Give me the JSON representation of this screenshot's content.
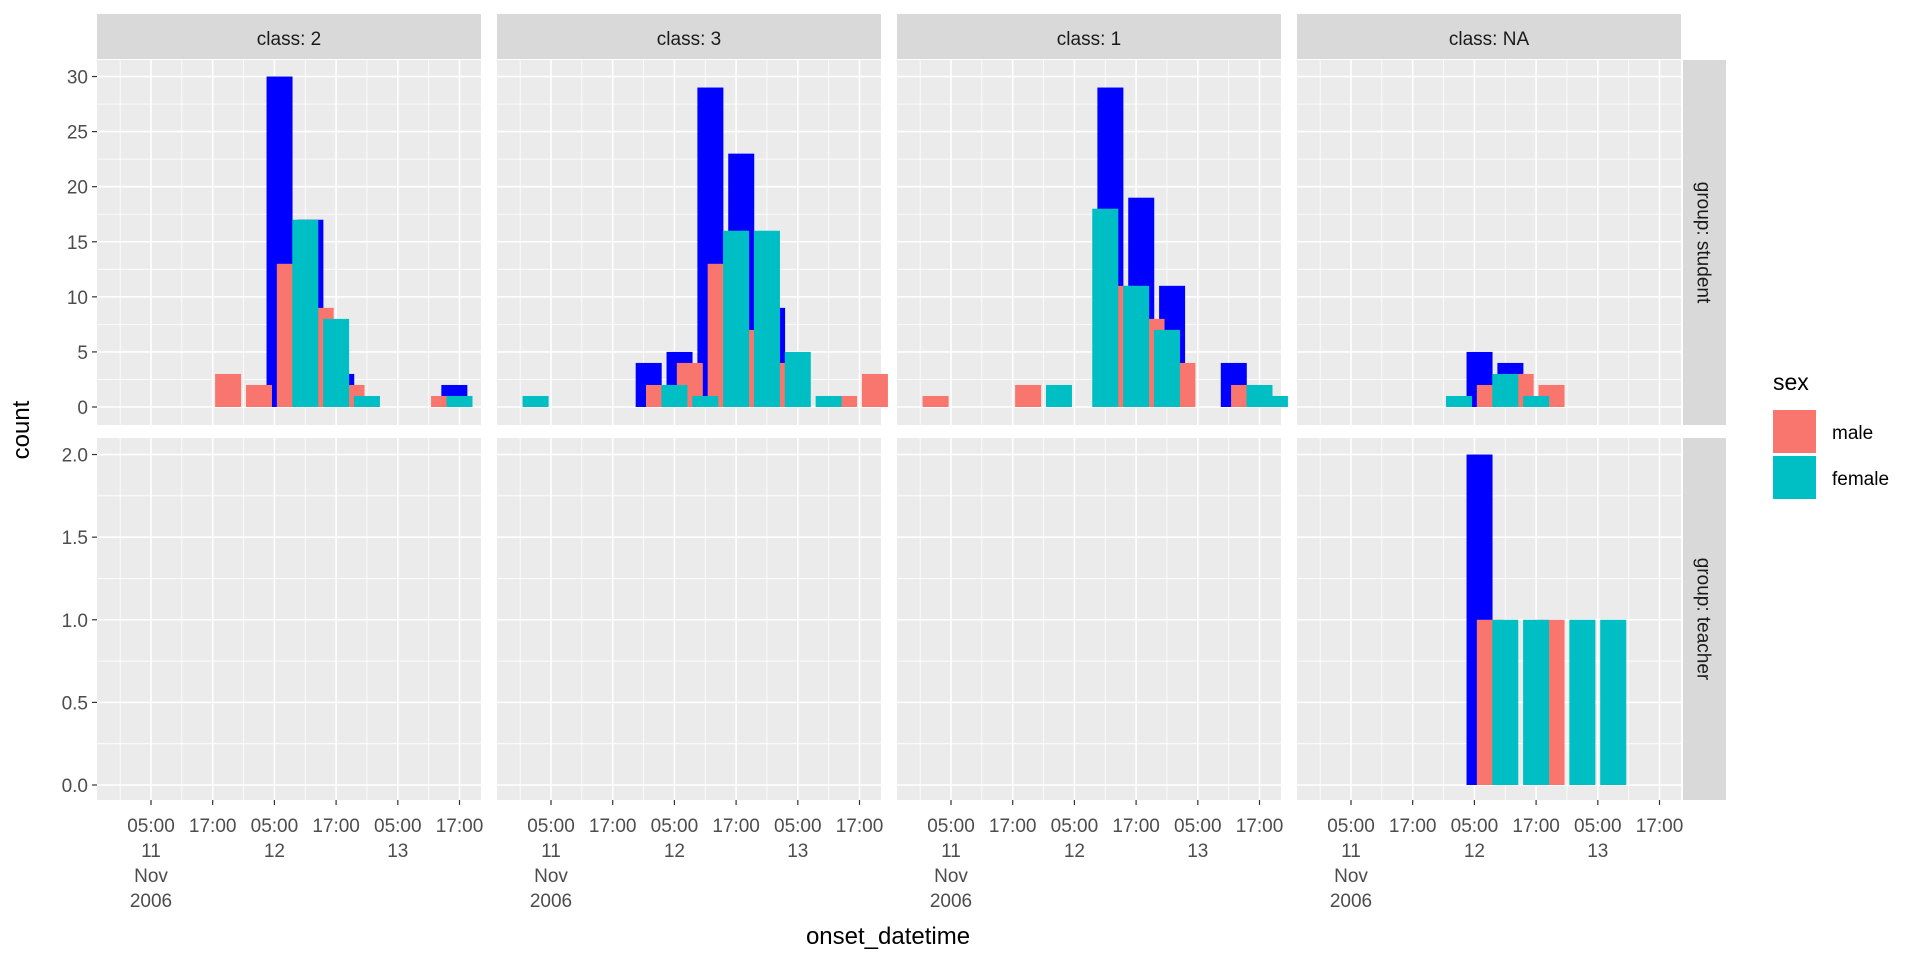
{
  "chart_data": {
    "type": "bar",
    "xlabel": "onset_datetime",
    "ylabel": "count",
    "facet_cols": [
      "class: 2",
      "class: 3",
      "class: 1",
      "class: NA"
    ],
    "facet_rows": [
      "group: student",
      "group: teacher"
    ],
    "x_ticks": [
      {
        "label": [
          "05:00",
          "11",
          "Nov",
          "2006"
        ]
      },
      {
        "label": [
          "17:00"
        ]
      },
      {
        "label": [
          "05:00",
          "12"
        ]
      },
      {
        "label": [
          "17:00"
        ]
      },
      {
        "label": [
          "05:00",
          "13"
        ]
      },
      {
        "label": [
          "17:00"
        ]
      }
    ],
    "x_tick_times": [
      "2006-11-11 05:00",
      "2006-11-11 17:00",
      "2006-11-12 05:00",
      "2006-11-12 17:00",
      "2006-11-13 05:00",
      "2006-11-13 17:00"
    ],
    "y_ticks": {
      "student": [
        "0",
        "5",
        "10",
        "15",
        "20",
        "25",
        "30"
      ],
      "teacher": [
        "0.0",
        "0.5",
        "1.0",
        "1.5",
        "2.0"
      ]
    },
    "ylim": {
      "student": [
        0,
        31.5
      ],
      "teacher": [
        0,
        2.1
      ]
    },
    "total_bar_color": "#0000ff",
    "legend": {
      "title": "sex",
      "position": "right",
      "entries": [
        {
          "label": "male",
          "color": "#f8766d"
        },
        {
          "label": "female",
          "color": "#00bfc4"
        }
      ]
    },
    "grid": true,
    "panel_background": "#ebebeb",
    "strip_background": "#d9d9d9",
    "total_series": {
      "note_free": true,
      "student": {
        "class: 2": [
          {
            "x": "2006-11-12 06:00",
            "total": 30
          },
          {
            "x": "2006-11-12 12:00",
            "total": 17
          },
          {
            "x": "2006-11-12 18:00",
            "total": 3
          },
          {
            "x": "2006-11-13 16:00",
            "total": 2
          }
        ],
        "class: 3": [
          {
            "x": "2006-11-12 00:00",
            "total": 4
          },
          {
            "x": "2006-11-12 06:00",
            "total": 5
          },
          {
            "x": "2006-11-12 12:00",
            "total": 29
          },
          {
            "x": "2006-11-12 18:00",
            "total": 23
          },
          {
            "x": "2006-11-13 00:00",
            "total": 9
          }
        ],
        "class: 1": [
          {
            "x": "2006-11-12 12:00",
            "total": 29
          },
          {
            "x": "2006-11-12 18:00",
            "total": 19
          },
          {
            "x": "2006-11-13 00:00",
            "total": 11
          },
          {
            "x": "2006-11-13 12:00",
            "total": 4
          }
        ],
        "class: NA": [
          {
            "x": "2006-11-12 06:00",
            "total": 5
          },
          {
            "x": "2006-11-12 12:00",
            "total": 4
          }
        ]
      },
      "teacher": {
        "class: NA": [
          {
            "x": "2006-11-12 06:00",
            "total": 2
          }
        ]
      }
    },
    "sex_series": {
      "student": {
        "class: 2": {
          "male": [
            {
              "x": "2006-11-11 20:00",
              "y": 3
            },
            {
              "x": "2006-11-12 02:00",
              "y": 2
            },
            {
              "x": "2006-11-12 08:00",
              "y": 13
            },
            {
              "x": "2006-11-12 14:00",
              "y": 9
            },
            {
              "x": "2006-11-12 20:00",
              "y": 2
            },
            {
              "x": "2006-11-13 14:00",
              "y": 1
            }
          ],
          "female": [
            {
              "x": "2006-11-12 11:00",
              "y": 17
            },
            {
              "x": "2006-11-12 17:00",
              "y": 8
            },
            {
              "x": "2006-11-12 23:00",
              "y": 1
            },
            {
              "x": "2006-11-13 17:00",
              "y": 1
            }
          ]
        },
        "class: 3": {
          "male": [
            {
              "x": "2006-11-12 02:00",
              "y": 2
            },
            {
              "x": "2006-11-12 08:00",
              "y": 4
            },
            {
              "x": "2006-11-12 14:00",
              "y": 13
            },
            {
              "x": "2006-11-12 20:00",
              "y": 7
            },
            {
              "x": "2006-11-13 02:00",
              "y": 4
            },
            {
              "x": "2006-11-13 14:00",
              "y": 1
            },
            {
              "x": "2006-11-13 20:00",
              "y": 3
            }
          ],
          "female": [
            {
              "x": "2006-11-11 02:00",
              "y": 1
            },
            {
              "x": "2006-11-12 05:00",
              "y": 2
            },
            {
              "x": "2006-11-12 11:00",
              "y": 1
            },
            {
              "x": "2006-11-12 17:00",
              "y": 16
            },
            {
              "x": "2006-11-12 23:00",
              "y": 16
            },
            {
              "x": "2006-11-13 05:00",
              "y": 5
            },
            {
              "x": "2006-11-13 11:00",
              "y": 1
            }
          ]
        },
        "class: 1": {
          "male": [
            {
              "x": "2006-11-11 02:00",
              "y": 1
            },
            {
              "x": "2006-11-11 20:00",
              "y": 2
            },
            {
              "x": "2006-11-12 14:00",
              "y": 11
            },
            {
              "x": "2006-11-12 20:00",
              "y": 8
            },
            {
              "x": "2006-11-13 02:00",
              "y": 4
            },
            {
              "x": "2006-11-13 14:00",
              "y": 2
            }
          ],
          "female": [
            {
              "x": "2006-11-12 02:00",
              "y": 2
            },
            {
              "x": "2006-11-12 11:00",
              "y": 18
            },
            {
              "x": "2006-11-12 17:00",
              "y": 11
            },
            {
              "x": "2006-11-12 23:00",
              "y": 7
            },
            {
              "x": "2006-11-13 17:00",
              "y": 2
            },
            {
              "x": "2006-11-13 20:00",
              "y": 1
            }
          ]
        },
        "class: NA": {
          "male": [
            {
              "x": "2006-11-12 08:00",
              "y": 2
            },
            {
              "x": "2006-11-12 14:00",
              "y": 3
            },
            {
              "x": "2006-11-12 20:00",
              "y": 2
            }
          ],
          "female": [
            {
              "x": "2006-11-12 02:00",
              "y": 1
            },
            {
              "x": "2006-11-12 11:00",
              "y": 3
            },
            {
              "x": "2006-11-12 17:00",
              "y": 1
            }
          ]
        }
      },
      "teacher": {
        "class: 2": {
          "male": [],
          "female": []
        },
        "class: 3": {
          "male": [],
          "female": []
        },
        "class: 1": {
          "male": [],
          "female": []
        },
        "class: NA": {
          "male": [
            {
              "x": "2006-11-12 08:00",
              "y": 1
            },
            {
              "x": "2006-11-12 20:00",
              "y": 1
            }
          ],
          "female": [
            {
              "x": "2006-11-12 11:00",
              "y": 1
            },
            {
              "x": "2006-11-12 17:00",
              "y": 1
            },
            {
              "x": "2006-11-13 02:00",
              "y": 1
            },
            {
              "x": "2006-11-13 08:00",
              "y": 1
            }
          ]
        }
      }
    }
  }
}
